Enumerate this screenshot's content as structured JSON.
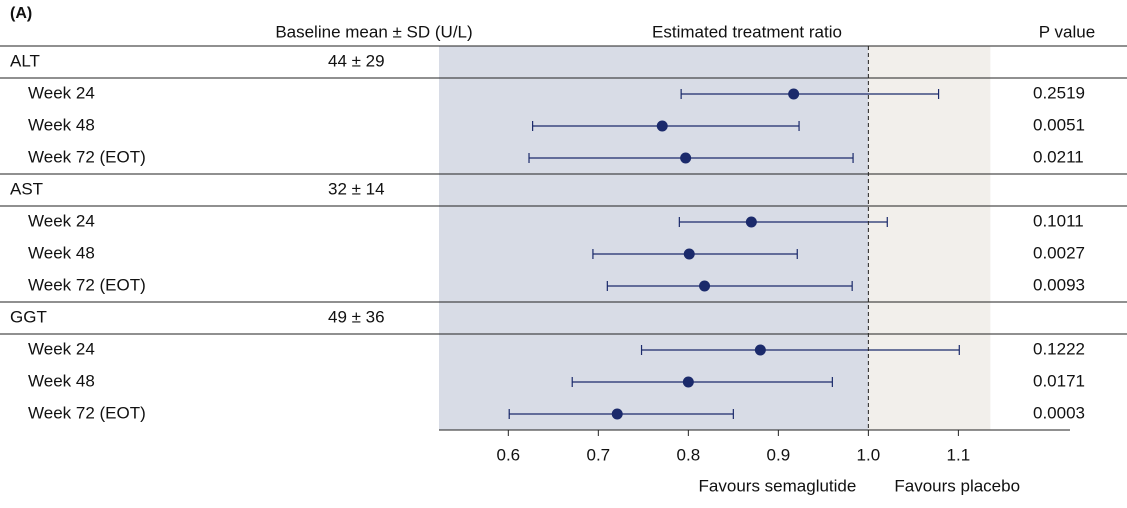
{
  "chart_data": {
    "type": "forest",
    "panel_label": "(A)",
    "columns": {
      "baseline": "Baseline mean ± SD (U/L)",
      "ratio": "Estimated treatment ratio",
      "p_value": "P value"
    },
    "groups": [
      {
        "name": "ALT",
        "baseline": "44 ± 29",
        "rows": [
          {
            "label": "Week 24",
            "estimate": 0.917,
            "lower": 0.792,
            "upper": 1.078,
            "p_value": "0.2519"
          },
          {
            "label": "Week 48",
            "estimate": 0.771,
            "lower": 0.627,
            "upper": 0.923,
            "p_value": "0.0051"
          },
          {
            "label": "Week 72 (EOT)",
            "estimate": 0.797,
            "lower": 0.623,
            "upper": 0.983,
            "p_value": "0.0211"
          }
        ]
      },
      {
        "name": "AST",
        "baseline": "32 ± 14",
        "rows": [
          {
            "label": "Week 24",
            "estimate": 0.87,
            "lower": 0.79,
            "upper": 1.021,
            "p_value": "0.1011"
          },
          {
            "label": "Week 48",
            "estimate": 0.801,
            "lower": 0.694,
            "upper": 0.921,
            "p_value": "0.0027"
          },
          {
            "label": "Week 72 (EOT)",
            "estimate": 0.818,
            "lower": 0.71,
            "upper": 0.982,
            "p_value": "0.0093"
          }
        ]
      },
      {
        "name": "GGT",
        "baseline": "49 ± 36",
        "rows": [
          {
            "label": "Week 24",
            "estimate": 0.88,
            "lower": 0.748,
            "upper": 1.101,
            "p_value": "0.1222"
          },
          {
            "label": "Week 48",
            "estimate": 0.8,
            "lower": 0.671,
            "upper": 0.96,
            "p_value": "0.0171"
          },
          {
            "label": "Week 72 (EOT)",
            "estimate": 0.721,
            "lower": 0.601,
            "upper": 0.85,
            "p_value": "0.0003"
          }
        ]
      }
    ],
    "xlim": [
      0.523,
      1.224
    ],
    "xticks": [
      0.6,
      0.7,
      0.8,
      0.9,
      {
        "value": 1,
        "label": "1.0"
      },
      1.1
    ],
    "ref_line": 1,
    "favours": {
      "left": "Favours semaglutide",
      "right": "Favours placebo"
    },
    "color": "#1b2a6b",
    "shade_left": "#d8dce6",
    "shade_right": "#f2efeb"
  }
}
